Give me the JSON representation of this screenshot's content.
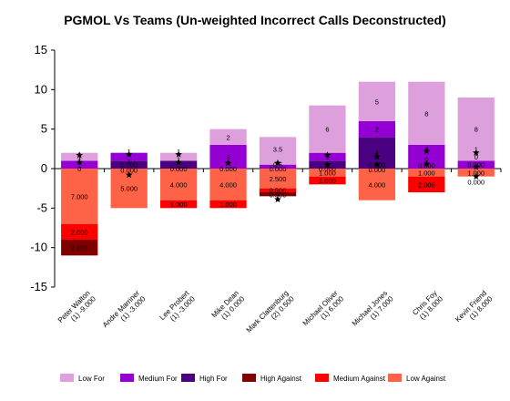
{
  "chart_data": {
    "type": "bar",
    "title": "PGMOL Vs Teams (Un-weighted Incorrect Calls Deconstructed)",
    "xlabel": "",
    "ylabel": "",
    "ylim": [
      -15,
      15
    ],
    "yticks": [
      "15",
      "10",
      "5",
      "0",
      "-5",
      "-10",
      "-15"
    ],
    "grid": false,
    "legend_position": "bottom",
    "stacked": true,
    "categories": [
      "Peter Walton (1) -9.000",
      "Andre Marriner (1) -3.000",
      "Lee Probert (1) -3.000",
      "Mike Dean (1) 0.000",
      "Mark Clattenburg (2) 0.500",
      "Michael Oliver (1) 6.000",
      "Michael Jones (1) 7.000",
      "Chris Foy (1) 8.000",
      "Kevin Friend (1) 8.000"
    ],
    "category_label_lines": [
      [
        "Peter Walton",
        "(1) -9.000"
      ],
      [
        "Andre Marriner",
        "(1) -3.000"
      ],
      [
        "Lee Probert",
        "(1) -3.000"
      ],
      [
        "Mike Dean",
        "(1) 0.000"
      ],
      [
        "Mark Clattenburg",
        "(2) 0.500"
      ],
      [
        "Michael Oliver",
        "(1) 6.000"
      ],
      [
        "Michael Jones",
        "(1) 7.000"
      ],
      [
        "Chris Foy",
        "(1) 8.000"
      ],
      [
        "Kevin Friend",
        "(1) 8.000"
      ]
    ],
    "series": [
      {
        "name": "High For",
        "color": "#4B0082",
        "sign": 1,
        "values": [
          0,
          1,
          1,
          0,
          0,
          1,
          4,
          0,
          0
        ]
      },
      {
        "name": "Medium For",
        "color": "#9400D3",
        "sign": 1,
        "values": [
          1,
          1,
          0,
          3,
          0.5,
          1,
          2,
          3,
          1
        ]
      },
      {
        "name": "Low For",
        "color": "#DDA0DD",
        "sign": 1,
        "values": [
          1,
          0,
          1,
          2,
          3.5,
          6,
          5,
          8,
          8
        ]
      },
      {
        "name": "Low Against",
        "color": "#FF6347",
        "sign": -1,
        "values": [
          7,
          5,
          4,
          4,
          2.5,
          1,
          4,
          1,
          1
        ]
      },
      {
        "name": "Medium Against",
        "color": "#FF0000",
        "sign": -1,
        "values": [
          2,
          0,
          1,
          1,
          0.5,
          1,
          0,
          2,
          0
        ]
      },
      {
        "name": "High Against",
        "color": "#800000",
        "sign": -1,
        "values": [
          2,
          0,
          0,
          0,
          0.5,
          0,
          0,
          0,
          0
        ]
      }
    ],
    "data_labels": [
      {
        "cat": 0,
        "y": 1.5,
        "text": "1"
      },
      {
        "cat": 0,
        "y": 0.5,
        "text": "1"
      },
      {
        "cat": 0,
        "y": 0.0,
        "text": "0"
      },
      {
        "cat": 0,
        "y": -3.5,
        "text": "7.000"
      },
      {
        "cat": 0,
        "y": -8.0,
        "text": "2.000"
      },
      {
        "cat": 0,
        "y": -10.0,
        "text": "2.000"
      },
      {
        "cat": 1,
        "y": 2.2,
        "text": "1"
      },
      {
        "cat": 1,
        "y": 1.0,
        "text": "1"
      },
      {
        "cat": 1,
        "y": 0.5,
        "text": "0.000"
      },
      {
        "cat": 1,
        "y": -0.2,
        "text": "0.000"
      },
      {
        "cat": 1,
        "y": -2.5,
        "text": "5.000"
      },
      {
        "cat": 2,
        "y": 2.2,
        "text": "1"
      },
      {
        "cat": 2,
        "y": 1.2,
        "text": "1"
      },
      {
        "cat": 2,
        "y": 0.0,
        "text": "0.000"
      },
      {
        "cat": 2,
        "y": -2.0,
        "text": "4.000"
      },
      {
        "cat": 2,
        "y": -4.5,
        "text": "1.000"
      },
      {
        "cat": 3,
        "y": 4.0,
        "text": "2"
      },
      {
        "cat": 3,
        "y": 1.5,
        "text": "3"
      },
      {
        "cat": 3,
        "y": 0.0,
        "text": "0.000"
      },
      {
        "cat": 3,
        "y": -2.0,
        "text": "4.000"
      },
      {
        "cat": 3,
        "y": -4.5,
        "text": "1.000"
      },
      {
        "cat": 4,
        "y": 2.5,
        "text": "3.5"
      },
      {
        "cat": 4,
        "y": 0.5,
        "text": "0.5"
      },
      {
        "cat": 4,
        "y": 0.0,
        "text": "0.000"
      },
      {
        "cat": 4,
        "y": -1.25,
        "text": "2.500"
      },
      {
        "cat": 4,
        "y": -2.7,
        "text": "0.500"
      },
      {
        "cat": 4,
        "y": -3.3,
        "text": "0.500"
      },
      {
        "cat": 5,
        "y": 5.0,
        "text": "6"
      },
      {
        "cat": 5,
        "y": 1.5,
        "text": "1"
      },
      {
        "cat": 5,
        "y": 0.5,
        "text": "1"
      },
      {
        "cat": 5,
        "y": 0.0,
        "text": "0.000"
      },
      {
        "cat": 5,
        "y": -0.5,
        "text": "1.000"
      },
      {
        "cat": 5,
        "y": -1.5,
        "text": "1.000"
      },
      {
        "cat": 6,
        "y": 8.5,
        "text": "5"
      },
      {
        "cat": 6,
        "y": 5.0,
        "text": "2"
      },
      {
        "cat": 6,
        "y": 2.0,
        "text": "4"
      },
      {
        "cat": 6,
        "y": 0.5,
        "text": "0.000"
      },
      {
        "cat": 6,
        "y": -0.1,
        "text": "0.000"
      },
      {
        "cat": 6,
        "y": -2.0,
        "text": "4.000"
      },
      {
        "cat": 7,
        "y": 7.0,
        "text": "8"
      },
      {
        "cat": 7,
        "y": 2.5,
        "text": "3"
      },
      {
        "cat": 7,
        "y": 1.2,
        "text": "0"
      },
      {
        "cat": 7,
        "y": 0.4,
        "text": "0.000"
      },
      {
        "cat": 7,
        "y": -0.5,
        "text": "1.000"
      },
      {
        "cat": 7,
        "y": -2.0,
        "text": "2.000"
      },
      {
        "cat": 8,
        "y": 5.0,
        "text": "8"
      },
      {
        "cat": 8,
        "y": 2.5,
        "text": "1"
      },
      {
        "cat": 8,
        "y": 1.5,
        "text": "0"
      },
      {
        "cat": 8,
        "y": 0.5,
        "text": "0.000"
      },
      {
        "cat": 8,
        "y": -0.5,
        "text": "1.000"
      },
      {
        "cat": 8,
        "y": -1.7,
        "text": "0.000"
      }
    ],
    "markers": [
      {
        "cat": 0,
        "y": 1.7
      },
      {
        "cat": 0,
        "y": 0.8
      },
      {
        "cat": 1,
        "y": 1.8
      },
      {
        "cat": 1,
        "y": -0.8
      },
      {
        "cat": 2,
        "y": 1.8
      },
      {
        "cat": 2,
        "y": 0.8
      },
      {
        "cat": 3,
        "y": 0.7
      },
      {
        "cat": 4,
        "y": 0.7
      },
      {
        "cat": 4,
        "y": -3.9
      },
      {
        "cat": 5,
        "y": 1.7
      },
      {
        "cat": 5,
        "y": 0.5
      },
      {
        "cat": 6,
        "y": 1.5
      },
      {
        "cat": 6,
        "y": 0.5
      },
      {
        "cat": 7,
        "y": 2.2
      },
      {
        "cat": 7,
        "y": 0.6
      },
      {
        "cat": 8,
        "y": 2.0
      },
      {
        "cat": 8,
        "y": 0.2
      },
      {
        "cat": 8,
        "y": -1.0
      }
    ],
    "legend": [
      {
        "name": "Low For",
        "color": "#DDA0DD"
      },
      {
        "name": "Medium For",
        "color": "#9400D3"
      },
      {
        "name": "High For",
        "color": "#4B0082"
      },
      {
        "name": "High Against",
        "color": "#800000"
      },
      {
        "name": "Medium Against",
        "color": "#FF0000"
      },
      {
        "name": "Low Against",
        "color": "#FF6347"
      }
    ]
  }
}
